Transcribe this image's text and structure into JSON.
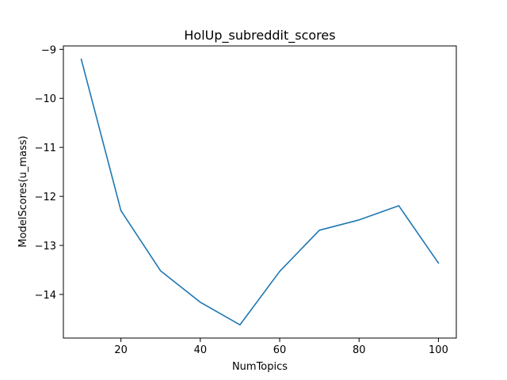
{
  "chart_data": {
    "type": "line",
    "title": "HolUp_subreddit_scores",
    "xlabel": "NumTopics",
    "ylabel": "ModelScores(u_mass)",
    "x": [
      10,
      20,
      30,
      40,
      50,
      60,
      70,
      80,
      90,
      100
    ],
    "series": [
      {
        "values": [
          -9.2,
          -12.29,
          -13.52,
          -14.16,
          -14.62,
          -13.53,
          -12.69,
          -12.48,
          -12.19,
          -13.36
        ],
        "color": "#1f77b4"
      }
    ],
    "xlim": [
      5.5,
      104.5
    ],
    "ylim": [
      -14.89,
      -8.93
    ],
    "xticks": [
      20,
      40,
      60,
      80,
      100
    ],
    "yticks": [
      -14,
      -13,
      -12,
      -11,
      -10,
      -9
    ],
    "yticklabels": [
      "−14",
      "−13",
      "−12",
      "−11",
      "−10",
      "−9"
    ],
    "grid": false,
    "legend": "none"
  }
}
